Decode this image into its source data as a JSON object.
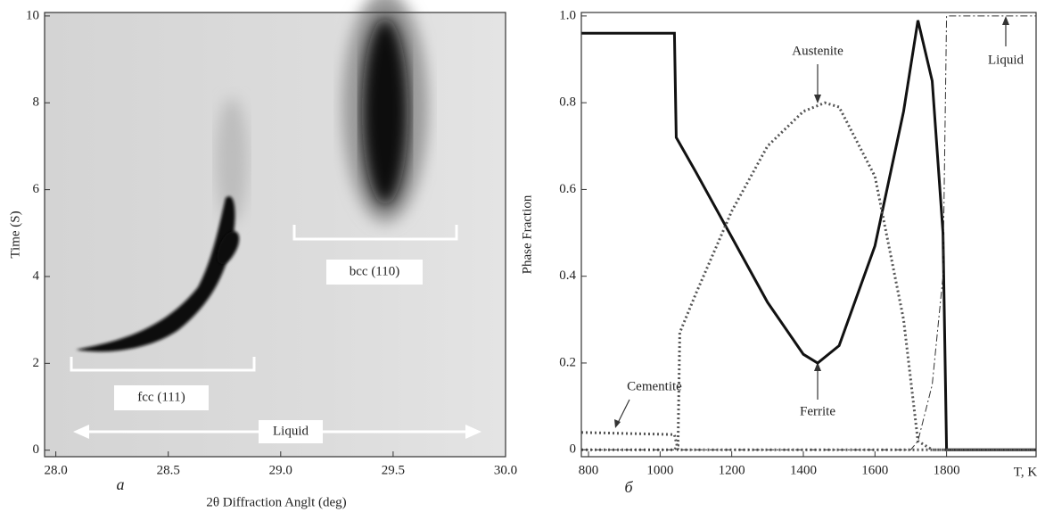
{
  "chart_data": [
    {
      "type": "image",
      "panel_label": "а",
      "x_label": "2θ Diffraction Anglt (deg)",
      "y_label": "Time (S)",
      "xlim": [
        27.95,
        30.0
      ],
      "ylim": [
        -0.15,
        10.08
      ],
      "xticks": [
        {
          "value": 28,
          "label": "28.0"
        },
        28.5,
        {
          "value": 29,
          "label": "29.0"
        },
        29.5,
        {
          "value": 30,
          "label": "30.0"
        }
      ],
      "yticks": [
        0,
        2,
        4,
        6,
        8,
        10
      ],
      "annotations": [
        "fcc (111)",
        "bcc (110)",
        "Liquid"
      ]
    },
    {
      "type": "line",
      "panel_label": "б",
      "x_label": "T, K",
      "y_label": "Phase Fraction",
      "xlim": [
        780,
        2050
      ],
      "ylim": [
        -0.016,
        1.008
      ],
      "xticks": [
        800,
        1000,
        1200,
        1400,
        1600,
        1800
      ],
      "yticks": [
        0,
        0.2,
        0.4,
        0.6,
        0.8,
        {
          "value": 1,
          "label": "1.0"
        }
      ],
      "series": [
        {
          "name": "Ferrite",
          "color": "#111111",
          "style": "solid",
          "line_width": 3,
          "x": [
            780,
            1040,
            1045,
            1100,
            1200,
            1300,
            1400,
            1440,
            1500,
            1600,
            1680,
            1720,
            1760,
            1790,
            1800,
            2050
          ],
          "values": [
            0.96,
            0.96,
            0.72,
            0.64,
            0.49,
            0.34,
            0.22,
            0.2,
            0.24,
            0.47,
            0.78,
            0.99,
            0.85,
            0.5,
            0,
            0
          ]
        },
        {
          "name": "Austenite",
          "color": "#555555",
          "style": "dotted",
          "line_width": 3,
          "x": [
            780,
            1040,
            1050,
            1055,
            1100,
            1200,
            1300,
            1400,
            1460,
            1500,
            1600,
            1680,
            1720,
            1760,
            2050
          ],
          "values": [
            0,
            0,
            0.01,
            0.27,
            0.36,
            0.55,
            0.7,
            0.78,
            0.8,
            0.79,
            0.63,
            0.3,
            0.02,
            0,
            0
          ]
        },
        {
          "name": "Cementite",
          "color": "#555555",
          "style": "dotted",
          "line_width": 3,
          "x": [
            780,
            1040,
            1050,
            2050
          ],
          "values": [
            0.04,
            0.035,
            0,
            0
          ]
        },
        {
          "name": "Liquid",
          "color": "#333333",
          "style": "dashdot",
          "line_width": 1,
          "x": [
            780,
            1700,
            1720,
            1760,
            1790,
            1800,
            2050
          ],
          "values": [
            0,
            0,
            0.02,
            0.15,
            0.4,
            1,
            1
          ]
        }
      ]
    }
  ]
}
